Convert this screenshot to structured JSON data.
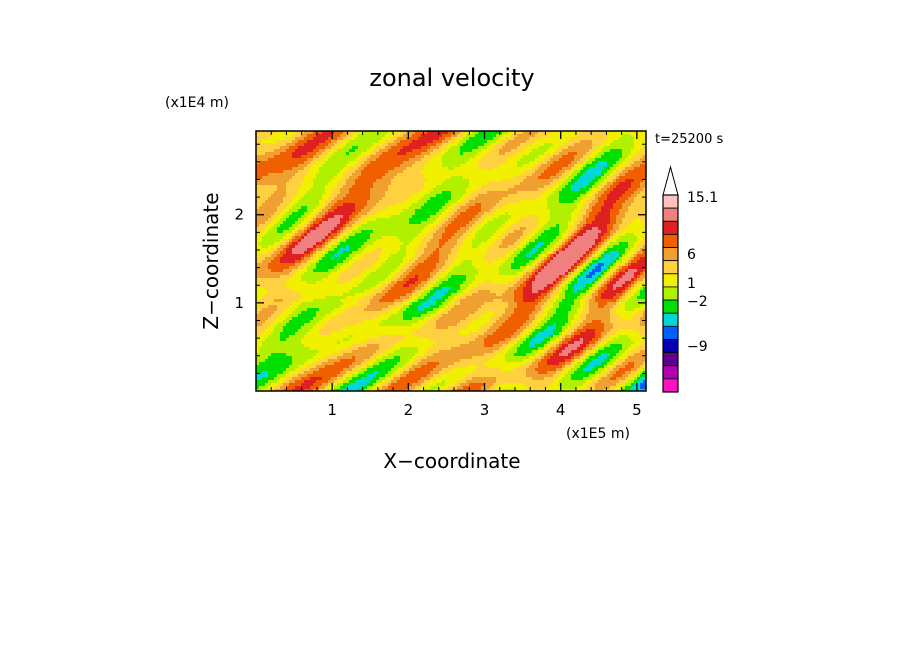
{
  "chart_data": {
    "type": "heatmap",
    "title": "zonal velocity",
    "xlabel": "X−coordinate",
    "ylabel": "Z−coordinate",
    "x_unit": "(x1E5 m)",
    "y_unit": "(x1E4 m)",
    "time_label": "t=25200 s",
    "x_ticks": [
      "1",
      "2",
      "3",
      "4",
      "5"
    ],
    "y_ticks": [
      "1",
      "2"
    ],
    "xlim": [
      0,
      5.12
    ],
    "ylim": [
      0,
      2.95
    ],
    "colorbar": {
      "labels": [
        "15.1",
        "6",
        "1",
        "−2",
        "−9"
      ],
      "colors": [
        "#ffc0c0",
        "#f08080",
        "#e02020",
        "#f06000",
        "#f0a030",
        "#ffd040",
        "#f0f000",
        "#b0f000",
        "#00e000",
        "#00d8d8",
        "#0060ff",
        "#0000b0",
        "#600090",
        "#b000b0",
        "#ff10c0"
      ],
      "extend": "max"
    }
  }
}
